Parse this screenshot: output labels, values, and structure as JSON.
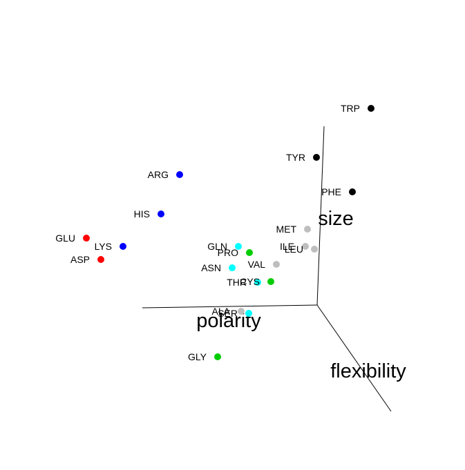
{
  "chart_data": {
    "type": "scatter",
    "projection": "3d",
    "grid": false,
    "axes": {
      "x": "polarity",
      "y": "flexibility",
      "z": "size"
    },
    "points": [
      {
        "label": "TRP",
        "color": "#000000"
      },
      {
        "label": "TYR",
        "color": "#000000"
      },
      {
        "label": "PHE",
        "color": "#000000"
      },
      {
        "label": "ARG",
        "color": "#0000ff"
      },
      {
        "label": "HIS",
        "color": "#0000ff"
      },
      {
        "label": "LYS",
        "color": "#0000ff"
      },
      {
        "label": "GLU",
        "color": "#ff0000"
      },
      {
        "label": "ASP",
        "color": "#ff0000"
      },
      {
        "label": "MET",
        "color": "#bebebe"
      },
      {
        "label": "ILE",
        "color": "#bebebe"
      },
      {
        "label": "LEU",
        "color": "#bebebe"
      },
      {
        "label": "VAL",
        "color": "#bebebe"
      },
      {
        "label": "ALA",
        "color": "#bebebe"
      },
      {
        "label": "GLN",
        "color": "#00ffff"
      },
      {
        "label": "ASN",
        "color": "#00ffff"
      },
      {
        "label": "SER",
        "color": "#00ffff"
      },
      {
        "label": "THR",
        "color": "#00ffff"
      },
      {
        "label": "PRO",
        "color": "#00cd00"
      },
      {
        "label": "CYS",
        "color": "#00cd00"
      },
      {
        "label": "GLY",
        "color": "#00cd00"
      }
    ]
  }
}
